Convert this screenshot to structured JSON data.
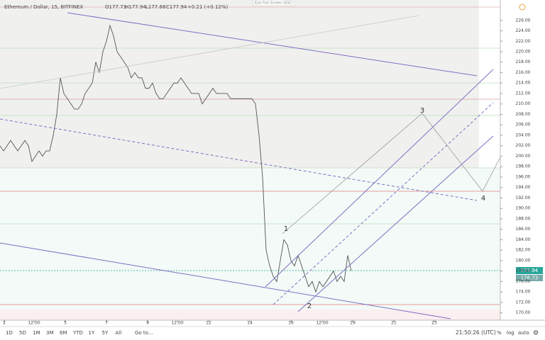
{
  "chart_data": {
    "type": "line",
    "header": {
      "symbol": "Ethereum / Dollar, 15, BITFINEX",
      "open": "O177.73",
      "high": "H177.94",
      "low": "L177.68",
      "close": "C177.94",
      "change": "+0.21 (+0.12%)"
    },
    "top_button": "Exit Full Screen (ESC)",
    "price_labels": [
      "177.94",
      "176.73"
    ],
    "annotations": [
      "1",
      "2",
      "3",
      "4"
    ],
    "categories": [
      null,
      null,
      null,
      null,
      null,
      null,
      null,
      null,
      null,
      null,
      null,
      null,
      null,
      null,
      null,
      null,
      null,
      null,
      null,
      null,
      null,
      null,
      null,
      null,
      null,
      null,
      null,
      null,
      null,
      null,
      null,
      null,
      null,
      null,
      null,
      null,
      null,
      null,
      null,
      null,
      null,
      null,
      null,
      null,
      null,
      null,
      null,
      null,
      null,
      null,
      null,
      null,
      null,
      null,
      null,
      null,
      null,
      null,
      null,
      null,
      null,
      null,
      null,
      null,
      null,
      null,
      null,
      null,
      null,
      null,
      null,
      null,
      null,
      null,
      null,
      null,
      null,
      null,
      null,
      null,
      null,
      null,
      null,
      null,
      null,
      null,
      null,
      null,
      null,
      null,
      null,
      null,
      null,
      null,
      null,
      null,
      null,
      null,
      null,
      null
    ],
    "series": [
      {
        "name": "ETHUSD",
        "color": "#555555",
        "values": [
          202,
          201,
          202,
          203,
          202,
          201,
          202,
          203,
          202,
          199,
          200,
          201,
          200,
          201,
          201,
          204,
          208,
          215,
          212,
          211,
          210,
          209,
          209,
          210,
          212,
          213,
          214,
          218,
          216,
          220,
          222,
          225,
          223,
          220,
          219,
          218,
          217,
          215,
          216,
          215,
          215,
          213,
          213,
          214,
          212,
          211,
          211,
          212,
          213,
          214,
          214,
          215,
          214,
          213,
          212,
          212,
          212,
          210,
          211,
          212,
          213,
          212,
          212,
          212,
          212,
          211,
          211,
          211,
          211,
          211,
          211,
          211,
          210,
          204,
          196,
          182,
          179,
          177,
          176,
          180,
          184,
          183,
          180,
          179,
          181,
          179,
          177,
          175,
          176,
          174,
          176,
          175,
          176,
          177,
          178,
          176,
          177,
          176,
          181,
          178
        ]
      }
    ],
    "xlim": [
      0,
      141
    ],
    "xticks": [
      {
        "value": 1.2,
        "label": "2"
      },
      {
        "value": 9.6,
        "label": "12:00"
      },
      {
        "value": 18.4,
        "label": "5"
      },
      {
        "value": 30,
        "label": "7"
      },
      {
        "value": 41.6,
        "label": "9"
      },
      {
        "value": 50,
        "label": "12:00"
      },
      {
        "value": 58.8,
        "label": "12"
      },
      {
        "value": 70.4,
        "label": "14"
      },
      {
        "value": 82,
        "label": "16"
      },
      {
        "value": 90.8,
        "label": "12:00"
      },
      {
        "value": 99.4,
        "label": "19"
      },
      {
        "value": 111,
        "label": "21"
      },
      {
        "value": 122.4,
        "label": "23"
      }
    ],
    "ylim": [
      168.6,
      229.9
    ],
    "yticks": [
      {
        "value": 170,
        "label": "170.00"
      },
      {
        "value": 172,
        "label": "172.00"
      },
      {
        "value": 174,
        "label": "174.00"
      },
      {
        "value": 176,
        "label": "176.00"
      },
      {
        "value": 178,
        "label": "178.00"
      },
      {
        "value": 180,
        "label": "180.00"
      },
      {
        "value": 182,
        "label": "182.00"
      },
      {
        "value": 184,
        "label": "184.00"
      },
      {
        "value": 186,
        "label": "186.00"
      },
      {
        "value": 188,
        "label": "188.00"
      },
      {
        "value": 190,
        "label": "190.00"
      },
      {
        "value": 192,
        "label": "192.00"
      },
      {
        "value": 194,
        "label": "194.00"
      },
      {
        "value": 196,
        "label": "196.00"
      },
      {
        "value": 198,
        "label": "198.00"
      },
      {
        "value": 200,
        "label": "200.00"
      },
      {
        "value": 202,
        "label": "202.00"
      },
      {
        "value": 204,
        "label": "204.00"
      },
      {
        "value": 206,
        "label": "206.00"
      },
      {
        "value": 208,
        "label": "208.00"
      },
      {
        "value": 210,
        "label": "210.00"
      },
      {
        "value": 212,
        "label": "212.00"
      },
      {
        "value": 214,
        "label": "214.00"
      },
      {
        "value": 216,
        "label": "216.00"
      },
      {
        "value": 218,
        "label": "218.00"
      },
      {
        "value": 220,
        "label": "220.00"
      },
      {
        "value": 222,
        "label": "222.00"
      },
      {
        "value": 224,
        "label": "224.00"
      },
      {
        "value": 226,
        "label": "226.00"
      }
    ],
    "toolbar": [
      "1D",
      "5D",
      "1M",
      "3M",
      "6M",
      "YTD",
      "1Y",
      "5Y",
      "All",
      "Go to..."
    ],
    "clock": "21:50:26 (UTC)",
    "scale_buttons": [
      "%",
      "log",
      "auto"
    ]
  }
}
